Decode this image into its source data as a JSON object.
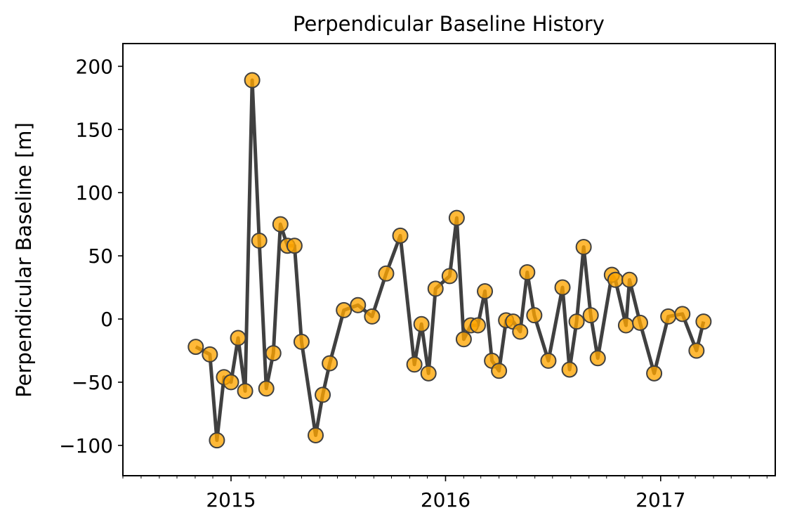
{
  "chart_data": {
    "type": "line",
    "title": "Perpendicular Baseline History",
    "xlabel": "",
    "ylabel": "Perpendicular Baseline [m]",
    "xlim": [
      "2014-07-01",
      "2017-07-15"
    ],
    "ylim": [
      -124,
      218
    ],
    "yticks": [
      -100,
      -50,
      0,
      50,
      100,
      150,
      200
    ],
    "ytick_labels": [
      "−100",
      "−50",
      "0",
      "50",
      "100",
      "150",
      "200"
    ],
    "xticks": [
      "2015-01-01",
      "2016-01-01",
      "2017-01-01"
    ],
    "xtick_labels": [
      "2015",
      "2016",
      "2017"
    ],
    "grid": false,
    "legend": "none",
    "line_color": "#404040",
    "marker_color": "#FFA500",
    "marker_edge_color": "#404040",
    "series": [
      {
        "x": [
          "2014-11-02",
          "2014-11-26",
          "2014-12-08",
          "2014-12-20",
          "2015-01-01",
          "2015-01-13",
          "2015-01-25",
          "2015-02-06",
          "2015-02-18",
          "2015-03-02",
          "2015-03-14",
          "2015-03-26",
          "2015-04-07",
          "2015-04-19",
          "2015-05-01",
          "2015-05-25",
          "2015-06-06",
          "2015-06-18",
          "2015-07-12",
          "2015-08-05",
          "2015-08-29",
          "2015-09-22",
          "2015-10-16",
          "2015-11-09",
          "2015-11-21",
          "2015-12-03",
          "2015-12-15",
          "2016-01-08",
          "2016-01-20",
          "2016-02-01",
          "2016-02-13",
          "2016-02-25",
          "2016-03-08",
          "2016-03-20",
          "2016-04-01",
          "2016-04-13",
          "2016-04-25",
          "2016-05-07",
          "2016-05-19",
          "2016-05-31",
          "2016-06-24",
          "2016-07-18",
          "2016-07-30",
          "2016-08-11",
          "2016-08-23",
          "2016-09-04",
          "2016-09-16",
          "2016-10-10",
          "2016-10-16",
          "2016-11-03",
          "2016-11-09",
          "2016-11-27",
          "2016-12-21",
          "2017-01-14",
          "2017-02-07",
          "2017-03-03",
          "2017-03-15"
        ],
        "y": [
          -22,
          -28,
          -96,
          -46,
          -50,
          -15,
          -57,
          189,
          62,
          -55,
          -27,
          75,
          58,
          58,
          -18,
          -92,
          -60,
          -35,
          7,
          11,
          2,
          36,
          66,
          -36,
          -4,
          -43,
          24,
          34,
          80,
          -16,
          -5,
          -5,
          22,
          -33,
          -41,
          -1,
          -2,
          -10,
          37,
          3,
          -33,
          25,
          -40,
          -2,
          57,
          3,
          -31,
          35,
          31,
          -5,
          31,
          -3,
          -43,
          2,
          4,
          -25,
          -2
        ]
      }
    ]
  }
}
